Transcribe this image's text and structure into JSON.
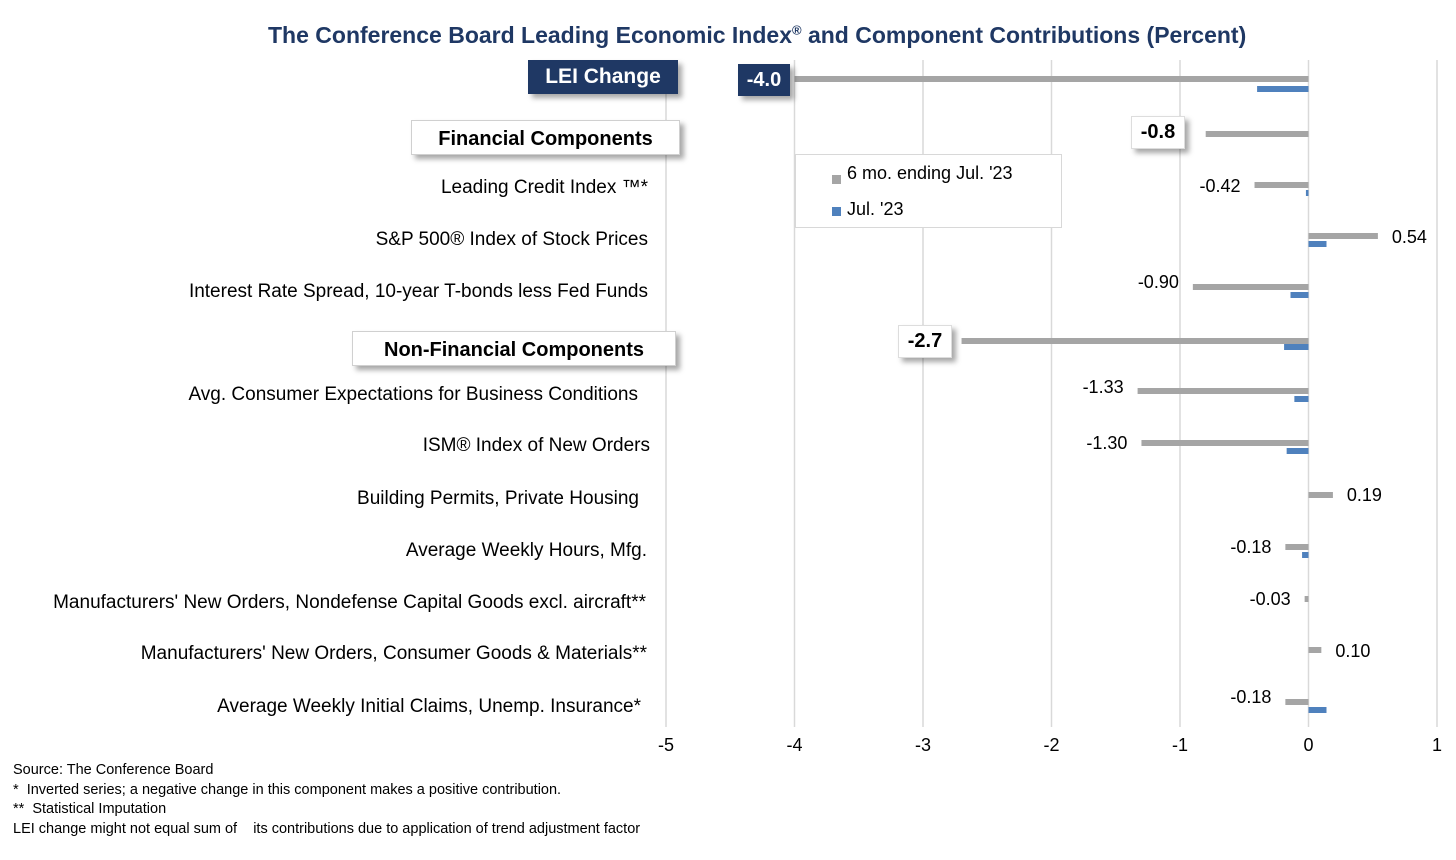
{
  "chart_data": {
    "type": "bar",
    "orientation": "horizontal",
    "title": "The Conference Board Leading Economic Index",
    "title_mark": "®",
    "title_suffix": " and Component Contributions (Percent)",
    "xlim": [
      -5,
      1
    ],
    "xticks": [
      "-5",
      "-4",
      "-3",
      "-2",
      "-1",
      "0",
      "1"
    ],
    "grid": true,
    "legend": {
      "placement": "top-center",
      "entries": [
        "6 mo. ending Jul. '23",
        "Jul. '23"
      ]
    },
    "series_colors": {
      "six_month": "#a5a5a5",
      "monthly": "#4f81bd"
    },
    "lei": {
      "label": "LEI Change",
      "total_label": "-4.0",
      "six_month": -4.0,
      "monthly": -0.4
    },
    "groups": [
      {
        "label": "Financial Components",
        "total_label": "-0.8",
        "six_month": -0.8,
        "components": [
          {
            "label": "Leading Credit Index ™*",
            "six_month": -0.42,
            "six_month_label": "-0.42",
            "monthly": -0.02
          },
          {
            "label": "S&P 500® Index of Stock Prices",
            "six_month": 0.54,
            "six_month_label": "0.54",
            "monthly": 0.14
          },
          {
            "label": "Interest Rate Spread, 10-year T-bonds less Fed Funds",
            "six_month": -0.9,
            "six_month_label": "-0.90",
            "monthly": -0.14
          }
        ]
      },
      {
        "label": "Non-Financial Components",
        "total_label": "-2.7",
        "six_month": -2.7,
        "monthly": -0.19,
        "components": [
          {
            "label": "Avg. Consumer Expectations for Business Conditions",
            "six_month": -1.33,
            "six_month_label": "-1.33",
            "monthly": -0.11
          },
          {
            "label": "ISM® Index of New Orders",
            "six_month": -1.3,
            "six_month_label": "-1.30",
            "monthly": -0.17
          },
          {
            "label": "Building Permits, Private Housing",
            "six_month": 0.19,
            "six_month_label": "0.19",
            "monthly": 0.0
          },
          {
            "label": "Average Weekly Hours, Mfg.",
            "six_month": -0.18,
            "six_month_label": "-0.18",
            "monthly": -0.05
          },
          {
            "label": "Manufacturers' New Orders, Nondefense Capital Goods excl. aircraft**",
            "six_month": -0.03,
            "six_month_label": "-0.03",
            "monthly": 0.0
          },
          {
            "label": "Manufacturers' New Orders, Consumer Goods & Materials**",
            "six_month": 0.1,
            "six_month_label": "0.10",
            "monthly": 0.0
          },
          {
            "label": "Average Weekly Initial Claims, Unemp. Insurance*",
            "six_month": -0.18,
            "six_month_label": "-0.18",
            "monthly": 0.14
          }
        ]
      }
    ]
  },
  "footnotes": [
    "Source: The Conference Board",
    "*  Inverted series; a negative change in this component makes a positive contribution.",
    "**  Statistical Imputation",
    "LEI change might not equal sum of    its contributions due to application of trend adjustment factor"
  ]
}
